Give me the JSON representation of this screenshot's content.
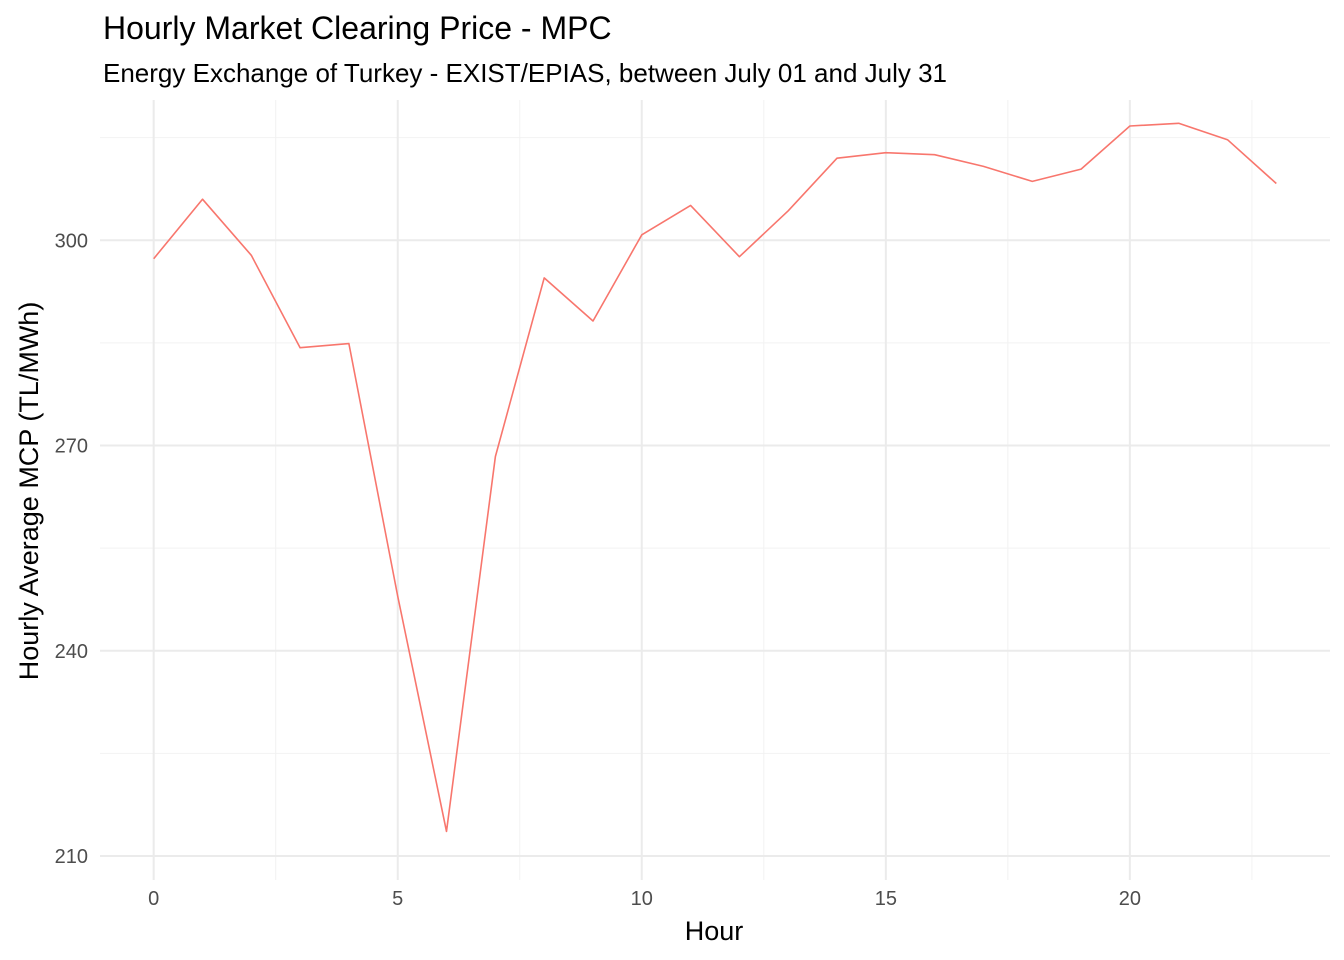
{
  "chart_data": {
    "type": "line",
    "title": "Hourly Market Clearing Price - MPC",
    "subtitle": "Energy Exchange of Turkey - EXIST/EPIAS, between July 01 and July 31",
    "xlabel": "Hour",
    "ylabel": "Hourly Average MCP (TL/MWh)",
    "xlim": [
      -1.1,
      24.1
    ],
    "ylim": [
      206.5,
      320.5
    ],
    "x_ticks": [
      0,
      5,
      10,
      15,
      20
    ],
    "y_ticks": [
      210,
      240,
      270,
      300
    ],
    "grid": true,
    "legend": "none",
    "line_color": "#F8766D",
    "series": [
      {
        "x": [
          0,
          1,
          2,
          3,
          4,
          5,
          6,
          7,
          8,
          9,
          10,
          11,
          12,
          13,
          14,
          15,
          16,
          17,
          18,
          19,
          20,
          21,
          22,
          23
        ],
        "values": [
          297.3,
          306.0,
          297.8,
          284.3,
          284.9,
          248.0,
          213.6,
          268.4,
          294.5,
          288.2,
          300.8,
          305.1,
          297.6,
          304.3,
          312.0,
          312.8,
          312.5,
          310.8,
          308.6,
          310.4,
          316.7,
          317.1,
          314.7,
          308.3
        ]
      }
    ]
  }
}
